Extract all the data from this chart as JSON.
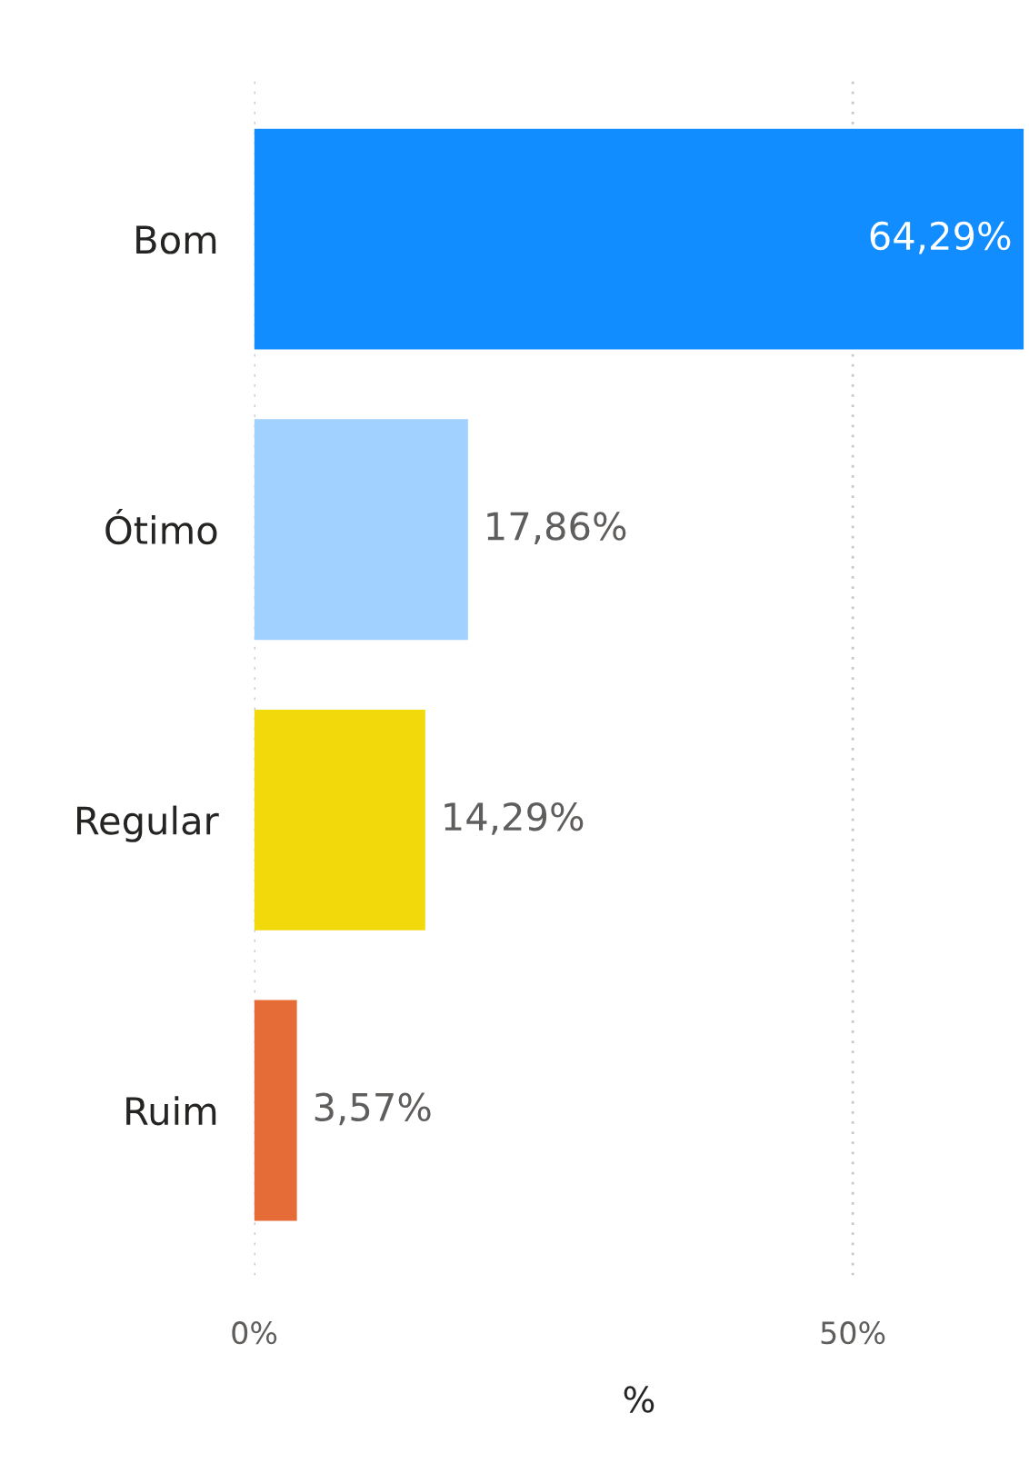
{
  "chart_data": {
    "type": "bar",
    "orientation": "horizontal",
    "xlabel": "%",
    "categories": [
      "Bom",
      "Ótimo",
      "Regular",
      "Ruim"
    ],
    "values": [
      64.29,
      17.86,
      14.29,
      3.57
    ],
    "colors": [
      "#118dff",
      "#a0d1ff",
      "#f2d90b",
      "#e66c37"
    ],
    "value_labels": [
      "64,29%",
      "17,86%",
      "14,29%",
      "3,57%"
    ],
    "xlim": [
      0,
      64.29
    ],
    "xticks": [
      {
        "value": 0,
        "label": "0%"
      },
      {
        "value": 50,
        "label": "50%"
      }
    ],
    "grid": "x",
    "legend": false
  }
}
